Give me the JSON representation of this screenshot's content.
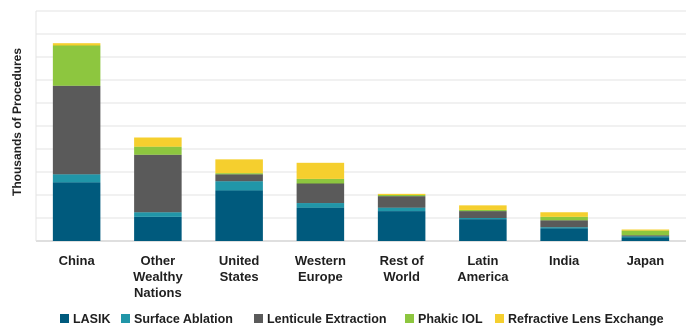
{
  "chart_data": {
    "type": "bar",
    "stacked": true,
    "title": "",
    "xlabel": "",
    "ylabel": "Thousands of Procedures",
    "ylim": [
      0,
      10
    ],
    "grid": true,
    "legend_position": "bottom",
    "categories": [
      [
        "China"
      ],
      [
        "Other",
        "Wealthy",
        "Nations"
      ],
      [
        "United",
        "States"
      ],
      [
        "Western",
        "Europe"
      ],
      [
        "Rest of",
        "World"
      ],
      [
        "Latin",
        "America"
      ],
      [
        "India"
      ],
      [
        "Japan"
      ]
    ],
    "series": [
      {
        "name": "LASIK",
        "color": "#005a7d",
        "values": [
          2.55,
          1.05,
          2.2,
          1.45,
          1.3,
          0.95,
          0.55,
          0.15
        ]
      },
      {
        "name": "Surface Ablation",
        "color": "#2196a8",
        "values": [
          0.35,
          0.2,
          0.4,
          0.2,
          0.15,
          0.05,
          0.05,
          0.05
        ]
      },
      {
        "name": "Lenticule Extraction",
        "color": "#5a5a5a",
        "values": [
          3.85,
          2.5,
          0.3,
          0.85,
          0.5,
          0.3,
          0.3,
          0.05
        ]
      },
      {
        "name": "Phakic IOL",
        "color": "#8dc63f",
        "values": [
          1.75,
          0.35,
          0.05,
          0.2,
          0.05,
          0.05,
          0.15,
          0.2
        ]
      },
      {
        "name": "Refractive Lens Exchange",
        "color": "#f5cf2e",
        "values": [
          0.1,
          0.4,
          0.6,
          0.7,
          0.05,
          0.2,
          0.2,
          0.05
        ]
      }
    ]
  }
}
